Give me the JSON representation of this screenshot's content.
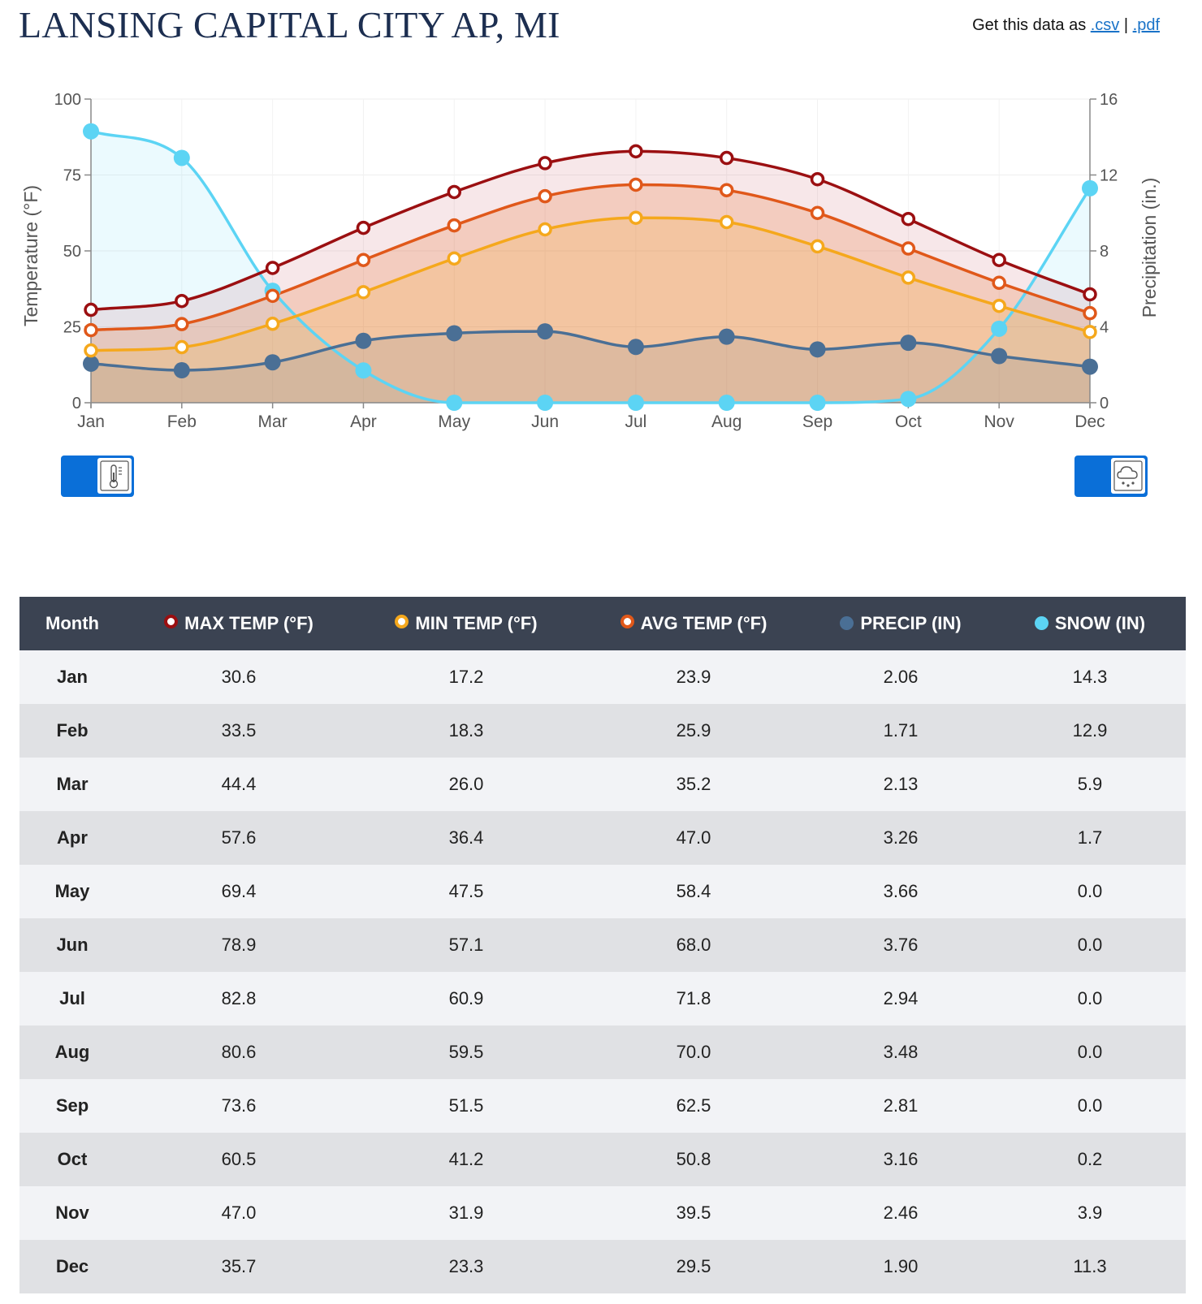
{
  "page": {
    "title": "LANSING CAPITAL CITY AP, MI",
    "download_prefix": "Get this data as",
    "download_csv": ".csv",
    "download_separator": "|",
    "download_pdf": ".pdf"
  },
  "chart_data": {
    "type": "line",
    "categories": [
      "Jan",
      "Feb",
      "Mar",
      "Apr",
      "May",
      "Jun",
      "Jul",
      "Aug",
      "Sep",
      "Oct",
      "Nov",
      "Dec"
    ],
    "ylabel_left": "Temperature (°F)",
    "ylabel_right": "Precipitation (in.)",
    "ylim_left": [
      0,
      100
    ],
    "yticks_left": [
      0,
      25,
      50,
      75,
      100
    ],
    "ylim_right": [
      0,
      16
    ],
    "yticks_right": [
      0,
      4,
      8,
      12,
      16
    ],
    "grid": true,
    "series": [
      {
        "key": "max",
        "axis": "left",
        "color": "#9b0f11",
        "marker": "hollow",
        "values": [
          30.6,
          33.5,
          44.4,
          57.6,
          69.4,
          78.9,
          82.8,
          80.6,
          73.6,
          60.5,
          47.0,
          35.7
        ]
      },
      {
        "key": "avg",
        "axis": "left",
        "color": "#e0581a",
        "marker": "hollow",
        "values": [
          23.9,
          25.9,
          35.2,
          47.0,
          58.4,
          68.0,
          71.8,
          70.0,
          62.5,
          50.8,
          39.5,
          29.5
        ]
      },
      {
        "key": "min",
        "axis": "left",
        "color": "#f5a81c",
        "marker": "hollow",
        "values": [
          17.2,
          18.3,
          26.0,
          36.4,
          47.5,
          57.1,
          60.9,
          59.5,
          51.5,
          41.2,
          31.9,
          23.3
        ]
      },
      {
        "key": "precip",
        "axis": "right",
        "color": "#4a6f95",
        "marker": "solid",
        "values": [
          2.06,
          1.71,
          2.13,
          3.26,
          3.66,
          3.76,
          2.94,
          3.48,
          2.81,
          3.16,
          2.46,
          1.9
        ]
      },
      {
        "key": "snow",
        "axis": "right",
        "color": "#5cd4f4",
        "marker": "solid",
        "values": [
          14.3,
          12.9,
          5.9,
          1.7,
          0.0,
          0.0,
          0.0,
          0.0,
          0.0,
          0.2,
          3.9,
          11.3
        ]
      }
    ]
  },
  "controls": {
    "temp_toggle_icon": "thermometer-icon",
    "precip_toggle_icon": "rain-cloud-icon"
  },
  "table": {
    "headers": {
      "month": "Month",
      "max": "MAX TEMP (°F)",
      "min": "MIN TEMP (°F)",
      "avg": "AVG TEMP (°F)",
      "precip": "PRECIP (IN)",
      "snow": "SNOW (IN)"
    },
    "header_colors": {
      "max": "#9b0f11",
      "min": "#f5a81c",
      "avg": "#e0581a",
      "precip": "#4a6f95",
      "snow": "#5cd4f4"
    },
    "rows": [
      {
        "month": "Jan",
        "max": "30.6",
        "min": "17.2",
        "avg": "23.9",
        "precip": "2.06",
        "snow": "14.3"
      },
      {
        "month": "Feb",
        "max": "33.5",
        "min": "18.3",
        "avg": "25.9",
        "precip": "1.71",
        "snow": "12.9"
      },
      {
        "month": "Mar",
        "max": "44.4",
        "min": "26.0",
        "avg": "35.2",
        "precip": "2.13",
        "snow": "5.9"
      },
      {
        "month": "Apr",
        "max": "57.6",
        "min": "36.4",
        "avg": "47.0",
        "precip": "3.26",
        "snow": "1.7"
      },
      {
        "month": "May",
        "max": "69.4",
        "min": "47.5",
        "avg": "58.4",
        "precip": "3.66",
        "snow": "0.0"
      },
      {
        "month": "Jun",
        "max": "78.9",
        "min": "57.1",
        "avg": "68.0",
        "precip": "3.76",
        "snow": "0.0"
      },
      {
        "month": "Jul",
        "max": "82.8",
        "min": "60.9",
        "avg": "71.8",
        "precip": "2.94",
        "snow": "0.0"
      },
      {
        "month": "Aug",
        "max": "80.6",
        "min": "59.5",
        "avg": "70.0",
        "precip": "3.48",
        "snow": "0.0"
      },
      {
        "month": "Sep",
        "max": "73.6",
        "min": "51.5",
        "avg": "62.5",
        "precip": "2.81",
        "snow": "0.0"
      },
      {
        "month": "Oct",
        "max": "60.5",
        "min": "41.2",
        "avg": "50.8",
        "precip": "3.16",
        "snow": "0.2"
      },
      {
        "month": "Nov",
        "max": "47.0",
        "min": "31.9",
        "avg": "39.5",
        "precip": "2.46",
        "snow": "3.9"
      },
      {
        "month": "Dec",
        "max": "35.7",
        "min": "23.3",
        "avg": "29.5",
        "precip": "1.90",
        "snow": "11.3"
      }
    ]
  }
}
